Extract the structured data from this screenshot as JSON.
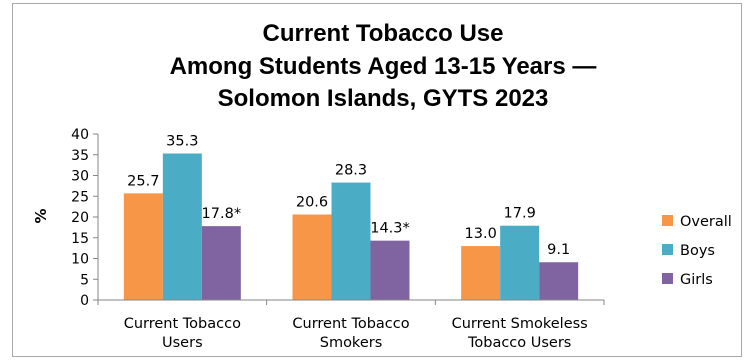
{
  "chart_data": {
    "type": "bar",
    "title_lines": [
      "Current Tobacco Use",
      "Among Students Aged 13-15 Years —",
      "Solomon Islands, GYTS 2023"
    ],
    "ylabel": "%",
    "xlabel": "",
    "ylim": [
      0,
      40
    ],
    "yticks": [
      "0",
      "5",
      "10",
      "15",
      "20",
      "25",
      "30",
      "35",
      "40"
    ],
    "grid": false,
    "legend_position": "right",
    "categories": [
      [
        "Current Tobacco",
        "Users"
      ],
      [
        "Current Tobacco",
        "Smokers"
      ],
      [
        "Current Smokeless",
        "Tobacco Users"
      ]
    ],
    "series": [
      {
        "name": "Overall",
        "color": "#f79646",
        "values": [
          25.7,
          20.6,
          13.0
        ],
        "labels": [
          "25.7",
          "20.6",
          "13.0"
        ]
      },
      {
        "name": "Boys",
        "color": "#4bacc6",
        "values": [
          35.3,
          28.3,
          17.9
        ],
        "labels": [
          "35.3",
          "28.3",
          "17.9"
        ]
      },
      {
        "name": "Girls",
        "color": "#8064a2",
        "values": [
          17.8,
          14.3,
          9.1
        ],
        "labels": [
          "17.8*",
          "14.3*",
          "9.1"
        ]
      }
    ]
  }
}
